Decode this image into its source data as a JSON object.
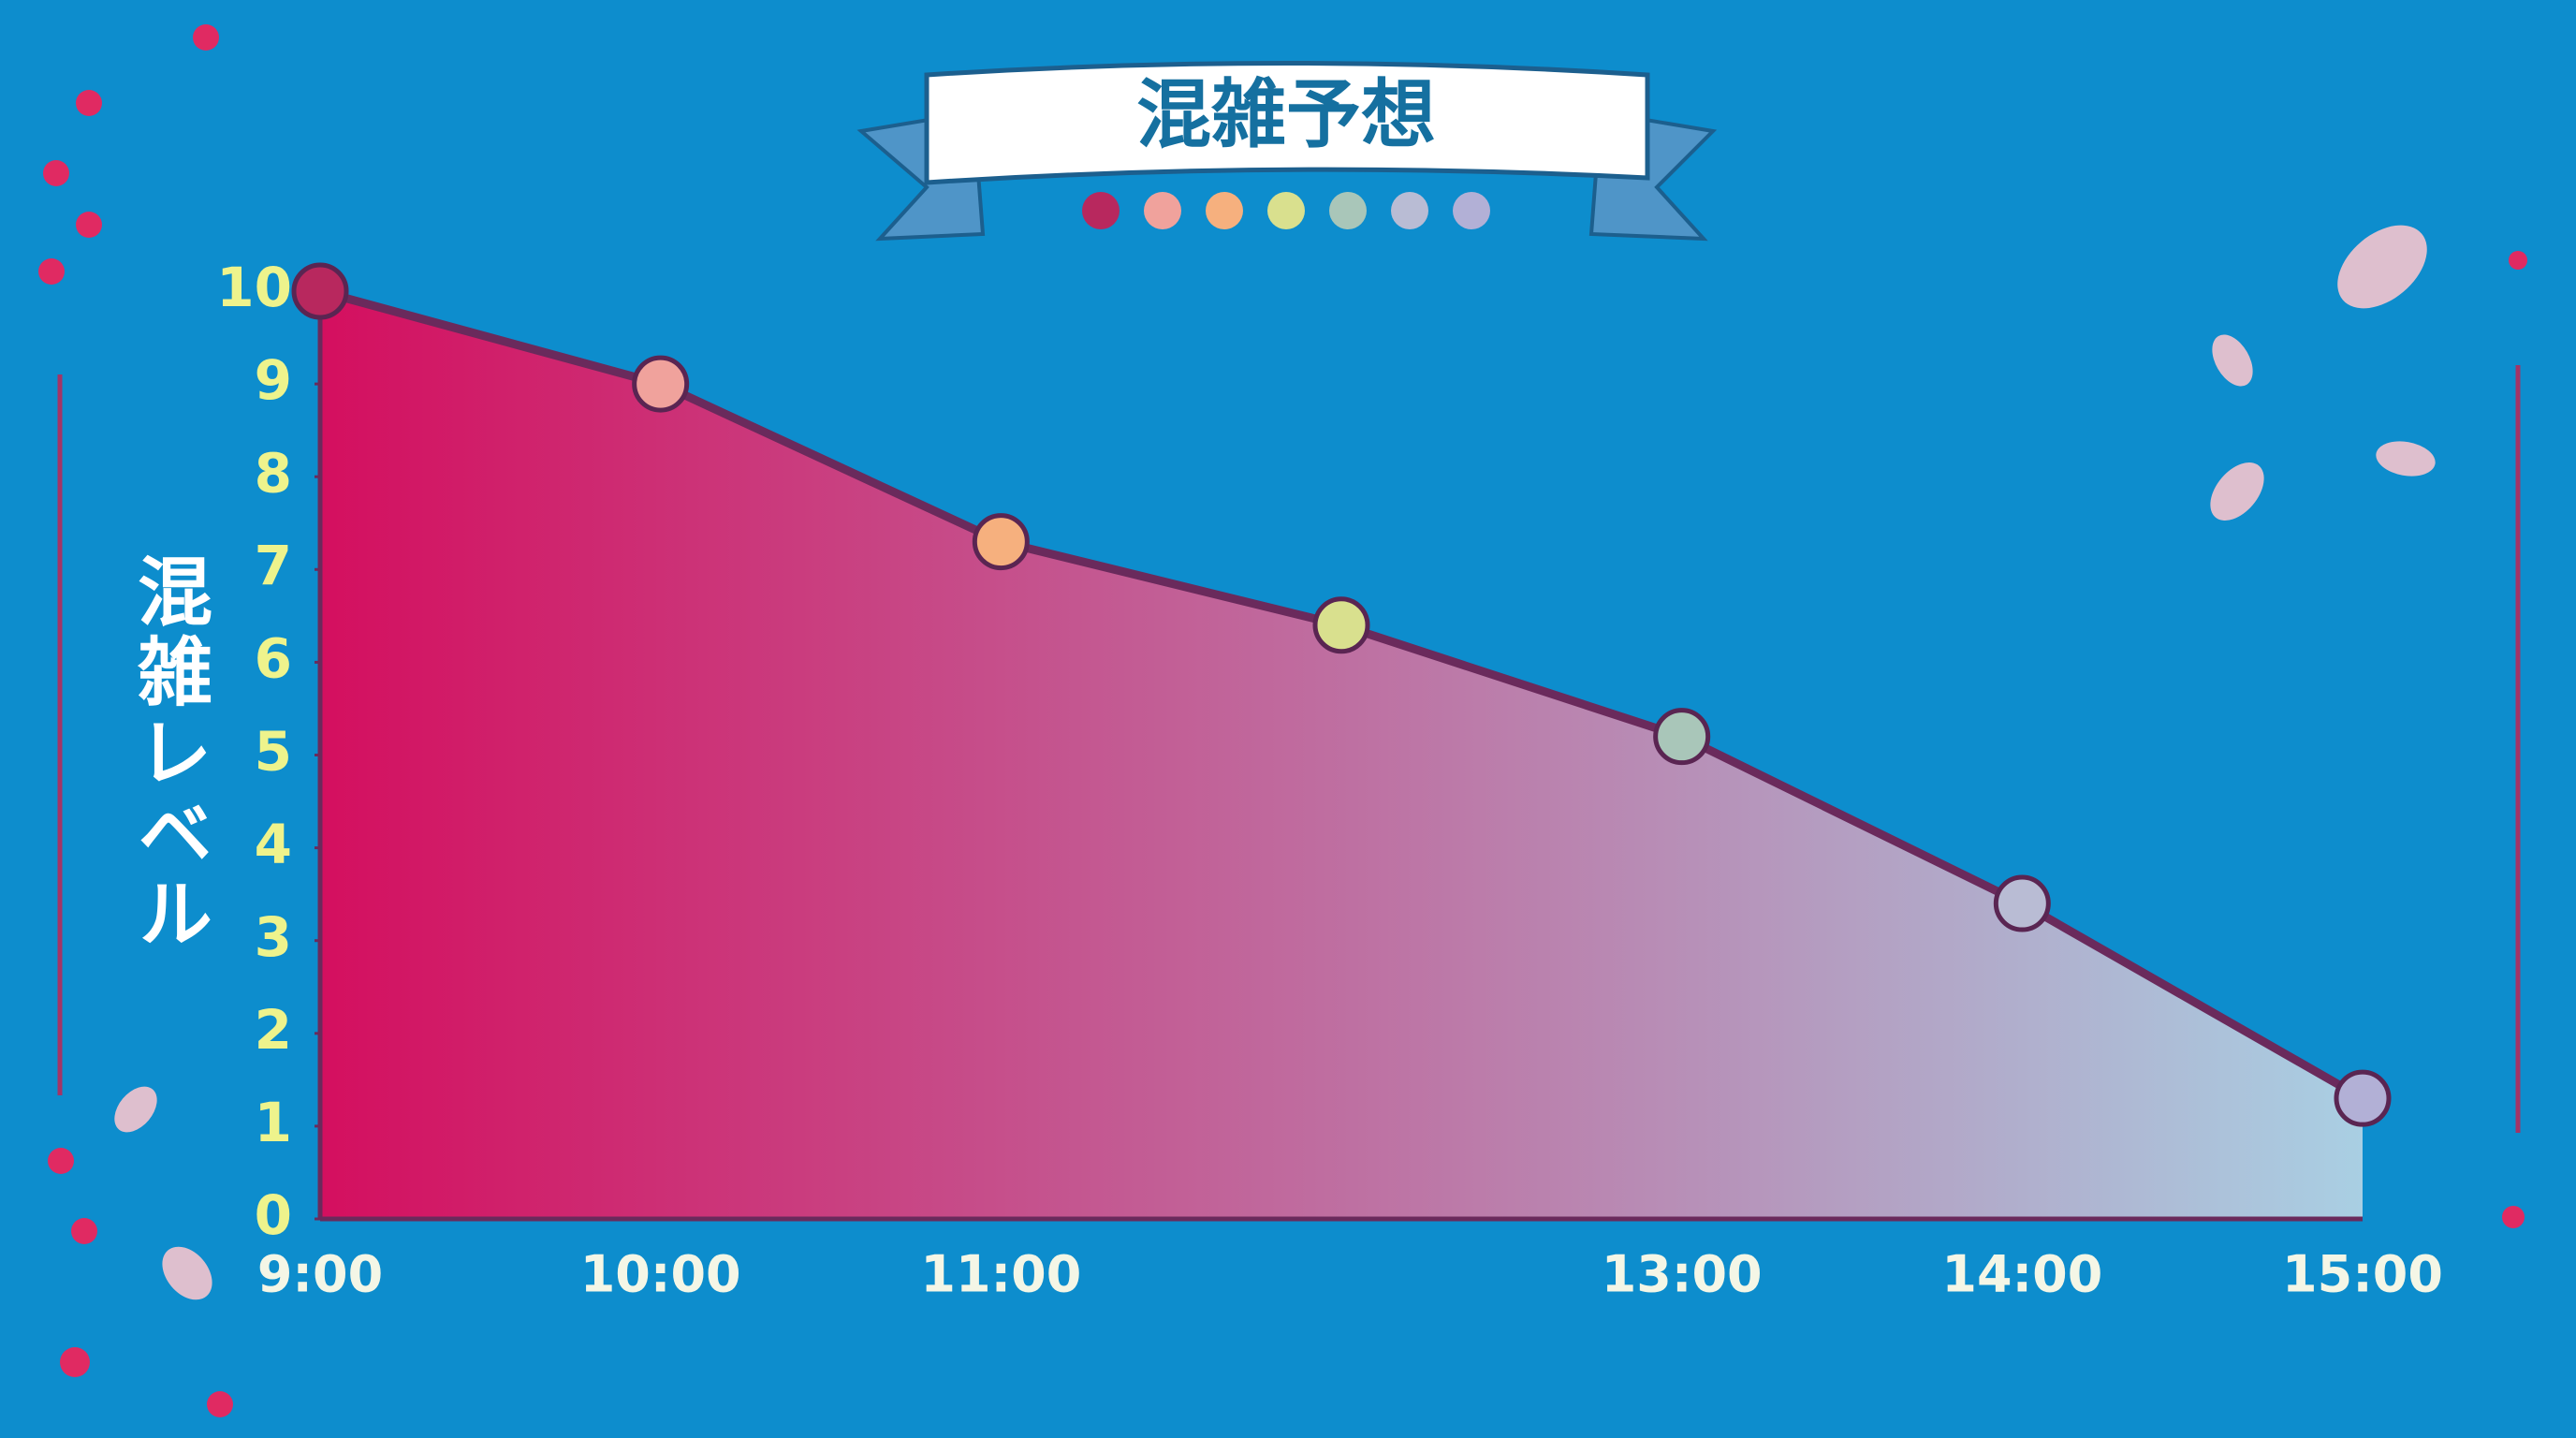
{
  "chart_data": {
    "type": "area",
    "title": "混雑予想",
    "y_label": "混雑レベル",
    "categories": [
      "9:00",
      "10:00",
      "11:00",
      null,
      "13:00",
      "14:00",
      "15:00"
    ],
    "values": [
      10,
      9,
      7.3,
      6.4,
      5.2,
      3.4,
      1.3
    ],
    "point_colors": [
      "#b8285e",
      "#f0a29c",
      "#f6b07e",
      "#d9e08e",
      "#a9c6b9",
      "#b9bcd4",
      "#b2b0d6"
    ],
    "fill_gradient": [
      "#d40f5f",
      "#a9cfe3"
    ],
    "line_color": "#6a2a5c",
    "ylim": [
      0,
      10
    ],
    "yticks": [
      0,
      1,
      2,
      3,
      4,
      5,
      6,
      7,
      8,
      9,
      10
    ]
  }
}
